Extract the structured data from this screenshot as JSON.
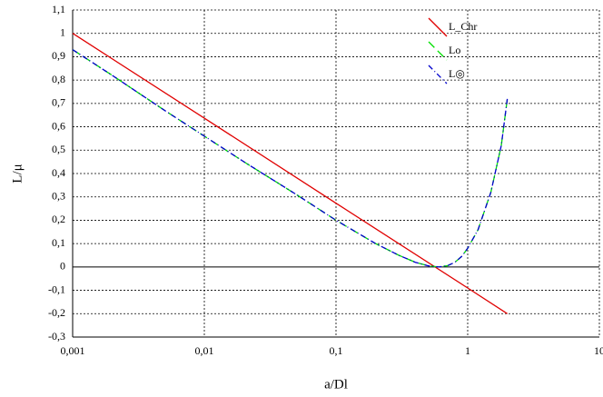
{
  "chart_data": {
    "type": "line",
    "x_label": "a/Dl",
    "y_label": "L/μ",
    "xscale": "log",
    "grid": true,
    "xlim": [
      0.001,
      10
    ],
    "xticks": [
      {
        "value": 0.001,
        "label": "0,001"
      },
      {
        "value": 0.01,
        "label": "0,01"
      },
      {
        "value": 0.1,
        "label": "0,1"
      },
      1,
      10
    ],
    "ylim": [
      -0.3,
      1.1
    ],
    "yticks": [
      {
        "value": -0.3,
        "label": "-0,3"
      },
      {
        "value": -0.2,
        "label": "-0,2"
      },
      {
        "value": -0.1,
        "label": "-0,1"
      },
      0,
      {
        "value": 0.1,
        "label": "0,1"
      },
      {
        "value": 0.2,
        "label": "0,2"
      },
      {
        "value": 0.3,
        "label": "0,3"
      },
      {
        "value": 0.4,
        "label": "0,4"
      },
      {
        "value": 0.5,
        "label": "0,5"
      },
      {
        "value": 0.6,
        "label": "0,6"
      },
      {
        "value": 0.7,
        "label": "0,7"
      },
      {
        "value": 0.8,
        "label": "0,8"
      },
      {
        "value": 0.9,
        "label": "0,9"
      },
      1,
      {
        "value": 1.1,
        "label": "1,1"
      }
    ],
    "series": [
      {
        "name": "L_Chr",
        "color": "#e00000",
        "dash": "none",
        "x": [
          0.001,
          0.01,
          0.1,
          1,
          2
        ],
        "values": [
          1.0,
          0.637,
          0.273,
          -0.09,
          -0.2
        ]
      },
      {
        "name": "Lo",
        "color": "#00e000",
        "dash": "9 5",
        "x": [
          0.001,
          0.002,
          0.005,
          0.01,
          0.02,
          0.05,
          0.1,
          0.2,
          0.3,
          0.4,
          0.5,
          0.6,
          0.7,
          0.8,
          0.9,
          1,
          1.2,
          1.5,
          1.8,
          2
        ],
        "values": [
          0.93,
          0.82,
          0.67,
          0.56,
          0.45,
          0.31,
          0.2,
          0.1,
          0.05,
          0.02,
          0.005,
          0.0,
          0.005,
          0.02,
          0.045,
          0.08,
          0.16,
          0.32,
          0.52,
          0.72
        ]
      },
      {
        "name": "L◎",
        "color": "#0000cc",
        "dash": "6 3 1 3",
        "x": [
          0.001,
          0.002,
          0.005,
          0.01,
          0.02,
          0.05,
          0.1,
          0.2,
          0.3,
          0.4,
          0.5,
          0.6,
          0.7,
          0.8,
          0.9,
          1,
          1.2,
          1.5,
          1.8,
          2
        ],
        "values": [
          0.93,
          0.82,
          0.67,
          0.56,
          0.45,
          0.31,
          0.2,
          0.1,
          0.05,
          0.02,
          0.005,
          0.0,
          0.005,
          0.02,
          0.045,
          0.08,
          0.16,
          0.32,
          0.52,
          0.72
        ]
      }
    ]
  }
}
